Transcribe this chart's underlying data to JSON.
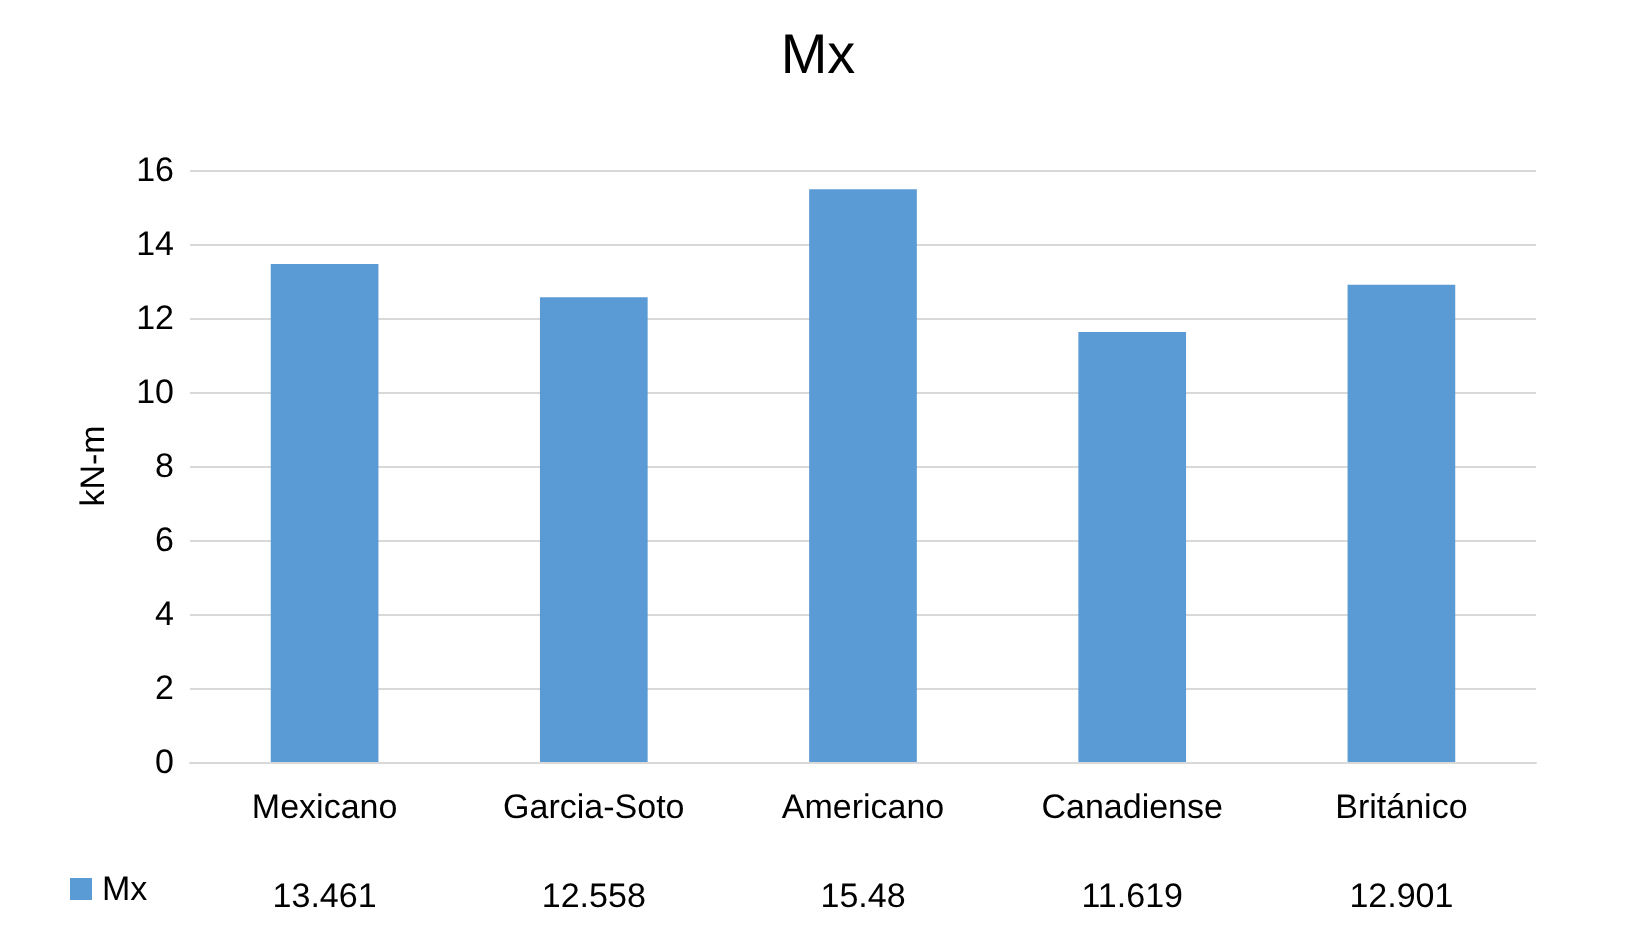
{
  "chart_data": {
    "type": "bar",
    "title": "Mx",
    "ylabel": "kN-m",
    "categories": [
      "Mexicano",
      "Garcia-Soto",
      "Americano",
      "Canadiense",
      "Británico"
    ],
    "series": [
      {
        "name": "Mx",
        "color": "#5b9bd5",
        "values": [
          13.461,
          12.558,
          15.48,
          11.619,
          12.901
        ]
      }
    ],
    "ylim": [
      0,
      16
    ],
    "yticks": [
      0,
      2,
      4,
      6,
      8,
      10,
      12,
      14,
      16
    ],
    "grid": "y",
    "legend": "bottom left",
    "data_labels": true
  }
}
